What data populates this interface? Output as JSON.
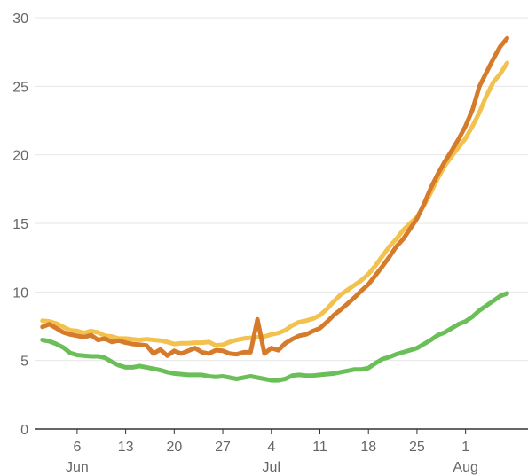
{
  "chart_data": {
    "type": "line",
    "title": "",
    "xlabel": "",
    "ylabel": "",
    "ylim": [
      0,
      30
    ],
    "yticks": [
      "0",
      "5",
      "10",
      "15",
      "20",
      "25",
      "30"
    ],
    "x_range": [
      "2020-05-31",
      "2020-08-10"
    ],
    "xticks": [
      {
        "date": "2020-06-06",
        "label": "6",
        "month": "Jun"
      },
      {
        "date": "2020-06-13",
        "label": "13",
        "month": ""
      },
      {
        "date": "2020-06-20",
        "label": "20",
        "month": ""
      },
      {
        "date": "2020-06-27",
        "label": "27",
        "month": ""
      },
      {
        "date": "2020-07-04",
        "label": "4",
        "month": "Jul"
      },
      {
        "date": "2020-07-11",
        "label": "11",
        "month": ""
      },
      {
        "date": "2020-07-18",
        "label": "18",
        "month": ""
      },
      {
        "date": "2020-07-25",
        "label": "25",
        "month": ""
      },
      {
        "date": "2020-08-01",
        "label": "1",
        "month": "Aug"
      }
    ],
    "grid": true,
    "legend": "none",
    "series": [
      {
        "color": "#f2c14e",
        "points": [
          [
            "2020-06-01",
            7.9
          ],
          [
            "2020-06-02",
            7.85
          ],
          [
            "2020-06-03",
            7.7
          ],
          [
            "2020-06-04",
            7.45
          ],
          [
            "2020-06-05",
            7.2
          ],
          [
            "2020-06-06",
            7.15
          ],
          [
            "2020-06-07",
            7.0
          ],
          [
            "2020-06-08",
            7.15
          ],
          [
            "2020-06-09",
            7.05
          ],
          [
            "2020-06-10",
            6.8
          ],
          [
            "2020-06-11",
            6.75
          ],
          [
            "2020-06-12",
            6.6
          ],
          [
            "2020-06-13",
            6.6
          ],
          [
            "2020-06-14",
            6.55
          ],
          [
            "2020-06-15",
            6.5
          ],
          [
            "2020-06-16",
            6.55
          ],
          [
            "2020-06-17",
            6.5
          ],
          [
            "2020-06-18",
            6.45
          ],
          [
            "2020-06-19",
            6.35
          ],
          [
            "2020-06-20",
            6.2
          ],
          [
            "2020-06-21",
            6.25
          ],
          [
            "2020-06-22",
            6.25
          ],
          [
            "2020-06-23",
            6.3
          ],
          [
            "2020-06-24",
            6.3
          ],
          [
            "2020-06-25",
            6.35
          ],
          [
            "2020-06-26",
            6.1
          ],
          [
            "2020-06-27",
            6.15
          ],
          [
            "2020-06-28",
            6.35
          ],
          [
            "2020-06-29",
            6.5
          ],
          [
            "2020-06-30",
            6.6
          ],
          [
            "2020-07-01",
            6.65
          ],
          [
            "2020-07-02",
            6.7
          ],
          [
            "2020-07-03",
            6.75
          ],
          [
            "2020-07-04",
            6.9
          ],
          [
            "2020-07-05",
            7.0
          ],
          [
            "2020-07-06",
            7.2
          ],
          [
            "2020-07-07",
            7.55
          ],
          [
            "2020-07-08",
            7.8
          ],
          [
            "2020-07-09",
            7.9
          ],
          [
            "2020-07-10",
            8.05
          ],
          [
            "2020-07-11",
            8.3
          ],
          [
            "2020-07-12",
            8.75
          ],
          [
            "2020-07-13",
            9.3
          ],
          [
            "2020-07-14",
            9.8
          ],
          [
            "2020-07-15",
            10.15
          ],
          [
            "2020-07-16",
            10.5
          ],
          [
            "2020-07-17",
            10.85
          ],
          [
            "2020-07-18",
            11.3
          ],
          [
            "2020-07-19",
            11.9
          ],
          [
            "2020-07-20",
            12.6
          ],
          [
            "2020-07-21",
            13.3
          ],
          [
            "2020-07-22",
            13.85
          ],
          [
            "2020-07-23",
            14.5
          ],
          [
            "2020-07-24",
            15.0
          ],
          [
            "2020-07-25",
            15.45
          ],
          [
            "2020-07-26",
            16.3
          ],
          [
            "2020-07-27",
            17.25
          ],
          [
            "2020-07-28",
            18.3
          ],
          [
            "2020-07-29",
            19.2
          ],
          [
            "2020-07-30",
            19.9
          ],
          [
            "2020-07-31",
            20.55
          ],
          [
            "2020-08-01",
            21.2
          ],
          [
            "2020-08-02",
            22.1
          ],
          [
            "2020-08-03",
            23.1
          ],
          [
            "2020-08-04",
            24.3
          ],
          [
            "2020-08-05",
            25.3
          ],
          [
            "2020-08-06",
            25.9
          ],
          [
            "2020-08-07",
            26.7
          ]
        ]
      },
      {
        "color": "#d67b2c",
        "points": [
          [
            "2020-06-01",
            7.45
          ],
          [
            "2020-06-02",
            7.65
          ],
          [
            "2020-06-03",
            7.35
          ],
          [
            "2020-06-04",
            7.05
          ],
          [
            "2020-06-05",
            6.9
          ],
          [
            "2020-06-06",
            6.8
          ],
          [
            "2020-06-07",
            6.7
          ],
          [
            "2020-06-08",
            6.85
          ],
          [
            "2020-06-09",
            6.5
          ],
          [
            "2020-06-10",
            6.6
          ],
          [
            "2020-06-11",
            6.35
          ],
          [
            "2020-06-12",
            6.45
          ],
          [
            "2020-06-13",
            6.3
          ],
          [
            "2020-06-14",
            6.2
          ],
          [
            "2020-06-15",
            6.15
          ],
          [
            "2020-06-16",
            6.1
          ],
          [
            "2020-06-17",
            5.5
          ],
          [
            "2020-06-18",
            5.8
          ],
          [
            "2020-06-19",
            5.35
          ],
          [
            "2020-06-20",
            5.7
          ],
          [
            "2020-06-21",
            5.5
          ],
          [
            "2020-06-22",
            5.7
          ],
          [
            "2020-06-23",
            5.9
          ],
          [
            "2020-06-24",
            5.6
          ],
          [
            "2020-06-25",
            5.5
          ],
          [
            "2020-06-26",
            5.75
          ],
          [
            "2020-06-27",
            5.7
          ],
          [
            "2020-06-28",
            5.5
          ],
          [
            "2020-06-29",
            5.45
          ],
          [
            "2020-06-30",
            5.6
          ],
          [
            "2020-07-01",
            5.6
          ],
          [
            "2020-07-02",
            8.0
          ],
          [
            "2020-07-03",
            5.5
          ],
          [
            "2020-07-04",
            5.9
          ],
          [
            "2020-07-05",
            5.75
          ],
          [
            "2020-07-06",
            6.25
          ],
          [
            "2020-07-07",
            6.55
          ],
          [
            "2020-07-08",
            6.8
          ],
          [
            "2020-07-09",
            6.9
          ],
          [
            "2020-07-10",
            7.15
          ],
          [
            "2020-07-11",
            7.35
          ],
          [
            "2020-07-12",
            7.8
          ],
          [
            "2020-07-13",
            8.3
          ],
          [
            "2020-07-14",
            8.7
          ],
          [
            "2020-07-15",
            9.15
          ],
          [
            "2020-07-16",
            9.6
          ],
          [
            "2020-07-17",
            10.1
          ],
          [
            "2020-07-18",
            10.55
          ],
          [
            "2020-07-19",
            11.2
          ],
          [
            "2020-07-20",
            11.85
          ],
          [
            "2020-07-21",
            12.55
          ],
          [
            "2020-07-22",
            13.3
          ],
          [
            "2020-07-23",
            13.85
          ],
          [
            "2020-07-24",
            14.6
          ],
          [
            "2020-07-25",
            15.35
          ],
          [
            "2020-07-26",
            16.4
          ],
          [
            "2020-07-27",
            17.6
          ],
          [
            "2020-07-28",
            18.6
          ],
          [
            "2020-07-29",
            19.5
          ],
          [
            "2020-07-30",
            20.3
          ],
          [
            "2020-07-31",
            21.15
          ],
          [
            "2020-08-01",
            22.1
          ],
          [
            "2020-08-02",
            23.3
          ],
          [
            "2020-08-03",
            25.0
          ],
          [
            "2020-08-04",
            26.0
          ],
          [
            "2020-08-05",
            27.0
          ],
          [
            "2020-08-06",
            27.9
          ],
          [
            "2020-08-07",
            28.5
          ]
        ]
      },
      {
        "color": "#6bbf59",
        "points": [
          [
            "2020-06-01",
            6.5
          ],
          [
            "2020-06-02",
            6.4
          ],
          [
            "2020-06-03",
            6.2
          ],
          [
            "2020-06-04",
            5.95
          ],
          [
            "2020-06-05",
            5.55
          ],
          [
            "2020-06-06",
            5.4
          ],
          [
            "2020-06-07",
            5.35
          ],
          [
            "2020-06-08",
            5.3
          ],
          [
            "2020-06-09",
            5.3
          ],
          [
            "2020-06-10",
            5.2
          ],
          [
            "2020-06-11",
            4.9
          ],
          [
            "2020-06-12",
            4.65
          ],
          [
            "2020-06-13",
            4.5
          ],
          [
            "2020-06-14",
            4.5
          ],
          [
            "2020-06-15",
            4.6
          ],
          [
            "2020-06-16",
            4.5
          ],
          [
            "2020-06-17",
            4.4
          ],
          [
            "2020-06-18",
            4.3
          ],
          [
            "2020-06-19",
            4.15
          ],
          [
            "2020-06-20",
            4.05
          ],
          [
            "2020-06-21",
            4.0
          ],
          [
            "2020-06-22",
            3.95
          ],
          [
            "2020-06-23",
            3.95
          ],
          [
            "2020-06-24",
            3.95
          ],
          [
            "2020-06-25",
            3.85
          ],
          [
            "2020-06-26",
            3.8
          ],
          [
            "2020-06-27",
            3.85
          ],
          [
            "2020-06-28",
            3.75
          ],
          [
            "2020-06-29",
            3.65
          ],
          [
            "2020-06-30",
            3.75
          ],
          [
            "2020-07-01",
            3.85
          ],
          [
            "2020-07-02",
            3.75
          ],
          [
            "2020-07-03",
            3.65
          ],
          [
            "2020-07-04",
            3.55
          ],
          [
            "2020-07-05",
            3.55
          ],
          [
            "2020-07-06",
            3.65
          ],
          [
            "2020-07-07",
            3.9
          ],
          [
            "2020-07-08",
            3.95
          ],
          [
            "2020-07-09",
            3.9
          ],
          [
            "2020-07-10",
            3.9
          ],
          [
            "2020-07-11",
            3.95
          ],
          [
            "2020-07-12",
            4.0
          ],
          [
            "2020-07-13",
            4.05
          ],
          [
            "2020-07-14",
            4.15
          ],
          [
            "2020-07-15",
            4.25
          ],
          [
            "2020-07-16",
            4.35
          ],
          [
            "2020-07-17",
            4.35
          ],
          [
            "2020-07-18",
            4.45
          ],
          [
            "2020-07-19",
            4.8
          ],
          [
            "2020-07-20",
            5.1
          ],
          [
            "2020-07-21",
            5.25
          ],
          [
            "2020-07-22",
            5.45
          ],
          [
            "2020-07-23",
            5.6
          ],
          [
            "2020-07-24",
            5.75
          ],
          [
            "2020-07-25",
            5.9
          ],
          [
            "2020-07-26",
            6.2
          ],
          [
            "2020-07-27",
            6.5
          ],
          [
            "2020-07-28",
            6.85
          ],
          [
            "2020-07-29",
            7.05
          ],
          [
            "2020-07-30",
            7.35
          ],
          [
            "2020-07-31",
            7.65
          ],
          [
            "2020-08-01",
            7.85
          ],
          [
            "2020-08-02",
            8.2
          ],
          [
            "2020-08-03",
            8.65
          ],
          [
            "2020-08-04",
            9.0
          ],
          [
            "2020-08-05",
            9.35
          ],
          [
            "2020-08-06",
            9.7
          ],
          [
            "2020-08-07",
            9.9
          ]
        ]
      }
    ]
  }
}
